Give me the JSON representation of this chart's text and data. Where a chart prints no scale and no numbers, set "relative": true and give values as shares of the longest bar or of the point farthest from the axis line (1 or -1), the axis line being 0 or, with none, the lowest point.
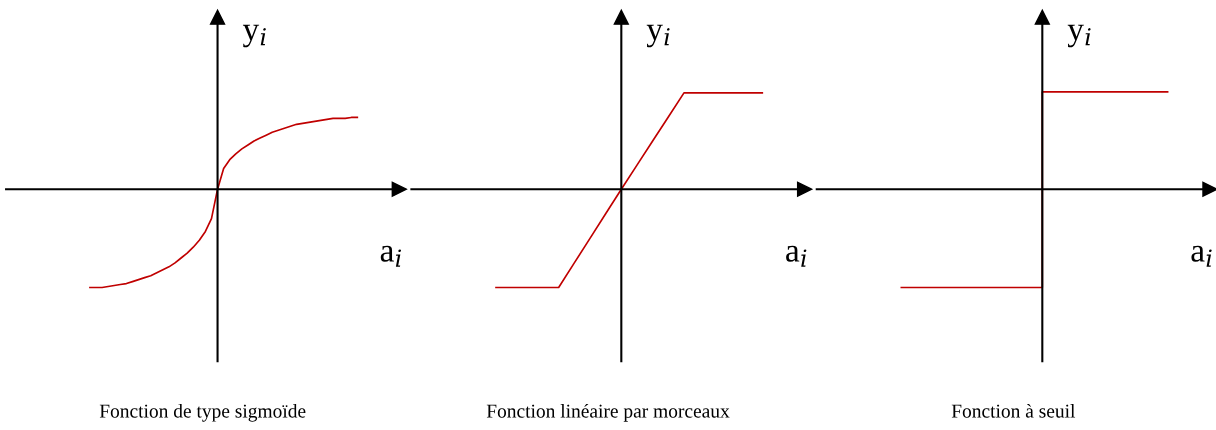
{
  "chart_data": [
    {
      "type": "line",
      "relative": true,
      "title": "Fonction de type sigmoïde",
      "xlabel": "a$_{i}$",
      "ylabel": "y$_{i}$",
      "categories": [
        null,
        null,
        null,
        null,
        null,
        null,
        null,
        null,
        null,
        null,
        null,
        null,
        null,
        null,
        null,
        null,
        null,
        null,
        null,
        null,
        null,
        null,
        null,
        null,
        null,
        null,
        null,
        null,
        null,
        null,
        null,
        null,
        null,
        null,
        null,
        null,
        null,
        null,
        null,
        null,
        null,
        null,
        null,
        null,
        null
      ],
      "series": [
        {
          "color": "#c00000",
          "values": [
            -1,
            -1,
            -1,
            -0.99,
            -0.98,
            -0.97,
            -0.96,
            -0.94,
            -0.92,
            -0.9,
            -0.88,
            -0.85,
            -0.82,
            -0.79,
            -0.75,
            -0.7,
            -0.65,
            -0.59,
            -0.52,
            -0.43,
            -0.3,
            0,
            0.21,
            0.3,
            0.36,
            0.41,
            0.45,
            0.49,
            0.52,
            0.55,
            0.58,
            0.6,
            0.62,
            0.64,
            0.66,
            0.67,
            0.68,
            0.69,
            0.7,
            0.71,
            0.72,
            0.72,
            0.72,
            0.73,
            0.73
          ]
        }
      ]
    },
    {
      "type": "line",
      "relative": true,
      "title": "Fonction linéaire par morceaux",
      "xlabel": "a$_{i}$",
      "ylabel": "y$_{i}$",
      "categories": [
        null,
        null,
        null,
        null,
        null,
        null,
        null,
        null,
        null,
        null,
        null,
        null,
        null,
        null,
        null,
        null,
        null,
        null
      ],
      "series": [
        {
          "color": "#c00000",
          "values": [
            -1,
            -1,
            -1,
            -1,
            -1,
            -0.75,
            -0.5,
            -0.25,
            0,
            0.245,
            0.49,
            0.735,
            0.98,
            0.98,
            0.98,
            0.98,
            0.98,
            0.98
          ]
        }
      ]
    },
    {
      "type": "step",
      "relative": true,
      "title": "Fonction à seuil",
      "xlabel": "a$_{i}$",
      "ylabel": "y$_{i}$",
      "categories": [
        null,
        null,
        null,
        null,
        null,
        null,
        null,
        null,
        null,
        null,
        null,
        null,
        null,
        null,
        null,
        null,
        null,
        null
      ],
      "series": [
        {
          "color": "#c00000",
          "values": [
            -1,
            -1,
            -1,
            -1,
            -1,
            -1,
            -1,
            -1,
            -1,
            0.99,
            0.99,
            0.99,
            0.99,
            0.99,
            0.99,
            0.99,
            0.99,
            0.99
          ]
        }
      ]
    }
  ]
}
